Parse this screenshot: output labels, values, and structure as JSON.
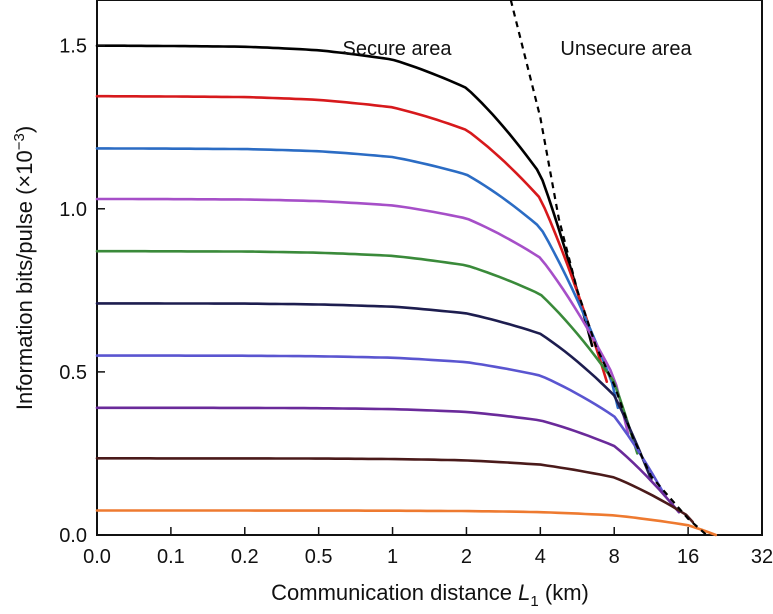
{
  "chart_data": {
    "type": "line",
    "xlabel": {
      "main": "Communication distance ",
      "var": "L",
      "sub": "1",
      "unit": " (km)"
    },
    "ylabel": {
      "main": "Information bits/pulse (×10",
      "sup": "−3",
      "close": ")"
    },
    "x_ticks": [
      "0.0",
      "0.1",
      "0.2",
      "0.5",
      "1",
      "2",
      "4",
      "8",
      "16",
      "32"
    ],
    "y_ticks": [
      0.0,
      0.5,
      1.0,
      1.5
    ],
    "y_tick_labels": [
      "0.0",
      "0.5",
      "1.0",
      "1.5"
    ],
    "ylim": [
      0,
      1.64
    ],
    "grid": false,
    "annotations": [
      {
        "text": "Secure area"
      },
      {
        "text": "Unsecure area"
      }
    ],
    "series": [
      {
        "color": "#000000",
        "start": 1.5,
        "end_x": "6.8",
        "end_y": 0.58
      },
      {
        "color": "#d7191c",
        "start": 1.345,
        "end_x": "7.6",
        "end_y": 0.47
      },
      {
        "color": "#2b6cc4",
        "start": 1.185,
        "end_x": "8.4",
        "end_y": 0.39
      },
      {
        "color": "#a64fc8",
        "start": 1.03,
        "end_x": "9.5",
        "end_y": 0.31
      },
      {
        "color": "#3a8a3a",
        "start": 0.87,
        "end_x": "10.5",
        "end_y": 0.25
      },
      {
        "color": "#1d1d4f",
        "start": 0.71,
        "end_x": "12",
        "end_y": 0.17
      },
      {
        "color": "#5a55d0",
        "start": 0.55,
        "end_x": "13.5",
        "end_y": 0.12
      },
      {
        "color": "#6a2a9a",
        "start": 0.39,
        "end_x": "15",
        "end_y": 0.07
      },
      {
        "color": "#4a1a1a",
        "start": 0.235,
        "end_x": "17",
        "end_y": 0.04
      },
      {
        "color": "#ee7a30",
        "start": 0.075,
        "end_x": "22",
        "end_y": 0.0
      }
    ],
    "boundary": {
      "style": "dashed",
      "color": "#000000",
      "points": [
        {
          "x": "3.2",
          "y": 1.64
        },
        {
          "x": "4",
          "y": 1.28
        },
        {
          "x": "5",
          "y": 0.97
        },
        {
          "x": "6",
          "y": 0.75
        },
        {
          "x": "7",
          "y": 0.58
        },
        {
          "x": "8",
          "y": 0.46
        },
        {
          "x": "10",
          "y": 0.3
        },
        {
          "x": "12",
          "y": 0.18
        },
        {
          "x": "16",
          "y": 0.05
        },
        {
          "x": "20",
          "y": 0.0
        }
      ]
    }
  }
}
